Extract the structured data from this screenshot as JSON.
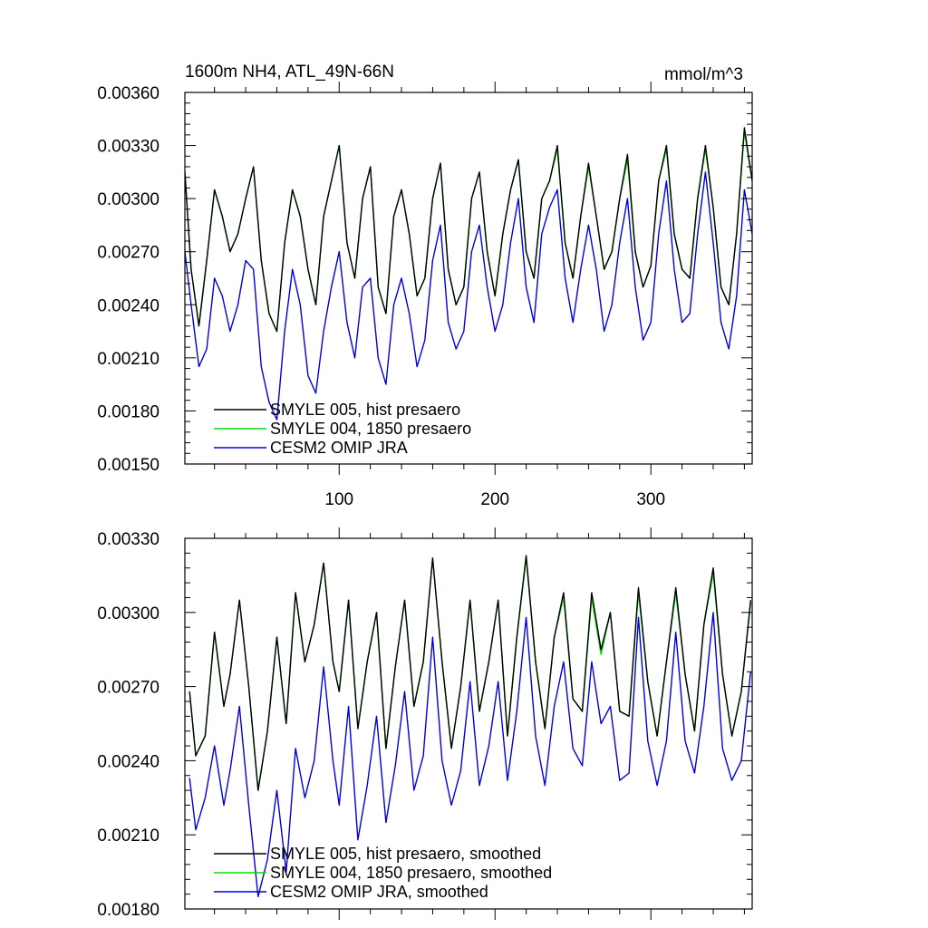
{
  "chart_data": [
    {
      "type": "line",
      "title": "1600m NH4, ATL_49N-66N",
      "units": "mmol/m^3",
      "xlabel": "",
      "ylabel": "",
      "xlim": [
        1,
        365
      ],
      "ylim": [
        0.0015,
        0.0036
      ],
      "x_ticks": [
        {
          "value": 100,
          "label": "100"
        },
        {
          "value": 200,
          "label": "200"
        },
        {
          "value": 300,
          "label": "300"
        }
      ],
      "y_ticks": [
        {
          "value": 0.0015,
          "label": "0.00150"
        },
        {
          "value": 0.0018,
          "label": "0.00180"
        },
        {
          "value": 0.0021,
          "label": "0.00210"
        },
        {
          "value": 0.0024,
          "label": "0.00240"
        },
        {
          "value": 0.0027,
          "label": "0.00270"
        },
        {
          "value": 0.003,
          "label": "0.00300"
        },
        {
          "value": 0.0033,
          "label": "0.00330"
        },
        {
          "value": 0.0036,
          "label": "0.00360"
        }
      ],
      "legend_position": "bottom-left",
      "series": [
        {
          "name": "SMYLE 005, hist presaero",
          "color": "#000000",
          "x": [
            1,
            5,
            10,
            15,
            20,
            25,
            30,
            35,
            40,
            45,
            50,
            55,
            60,
            65,
            70,
            75,
            80,
            85,
            90,
            95,
            100,
            105,
            110,
            115,
            120,
            125,
            130,
            135,
            140,
            145,
            150,
            155,
            160,
            165,
            170,
            175,
            180,
            185,
            190,
            195,
            200,
            205,
            210,
            215,
            220,
            225,
            230,
            235,
            240,
            245,
            250,
            255,
            260,
            265,
            270,
            275,
            280,
            285,
            290,
            295,
            300,
            305,
            310,
            315,
            320,
            325,
            330,
            335,
            340,
            345,
            350,
            355,
            360,
            365
          ],
          "values": [
            0.00315,
            0.0026,
            0.00228,
            0.00265,
            0.00305,
            0.0029,
            0.0027,
            0.0028,
            0.003,
            0.00318,
            0.00265,
            0.00235,
            0.00225,
            0.00275,
            0.00305,
            0.0029,
            0.0026,
            0.0024,
            0.0029,
            0.0031,
            0.0033,
            0.00275,
            0.00255,
            0.003,
            0.00318,
            0.0025,
            0.00235,
            0.0029,
            0.00305,
            0.0028,
            0.00245,
            0.00255,
            0.003,
            0.0032,
            0.0026,
            0.0024,
            0.0025,
            0.003,
            0.00315,
            0.0027,
            0.00245,
            0.0028,
            0.00305,
            0.00322,
            0.0027,
            0.00255,
            0.003,
            0.0031,
            0.0033,
            0.00275,
            0.00255,
            0.0029,
            0.0032,
            0.0029,
            0.0026,
            0.0027,
            0.003,
            0.00325,
            0.0027,
            0.0025,
            0.00262,
            0.0031,
            0.0033,
            0.0028,
            0.0026,
            0.00255,
            0.003,
            0.0033,
            0.00295,
            0.0025,
            0.0024,
            0.0028,
            0.0034,
            0.0031
          ]
        },
        {
          "name": "SMYLE 004, 1850 presaero",
          "color": "#00dd00",
          "x": [
            1,
            5,
            10,
            15,
            20,
            25,
            30,
            35,
            40,
            45,
            50,
            55,
            60,
            65,
            70,
            75,
            80,
            85,
            90,
            95,
            100,
            105,
            110,
            115,
            120,
            125,
            130,
            135,
            140,
            145,
            150,
            155,
            160,
            165,
            170,
            175,
            180,
            185,
            190,
            195,
            200,
            205,
            210,
            215,
            220,
            225,
            230,
            235,
            240,
            245,
            250,
            255,
            260,
            265,
            270,
            275,
            280,
            285,
            290,
            295,
            300,
            305,
            310,
            315,
            320,
            325,
            330,
            335,
            340,
            345,
            350,
            355,
            360,
            365
          ],
          "values": [
            0.00315,
            0.0026,
            0.00228,
            0.00265,
            0.00305,
            0.0029,
            0.0027,
            0.0028,
            0.003,
            0.00318,
            0.00265,
            0.00235,
            0.00225,
            0.00275,
            0.00305,
            0.0029,
            0.0026,
            0.0024,
            0.0029,
            0.0031,
            0.0033,
            0.00275,
            0.00255,
            0.003,
            0.00318,
            0.0025,
            0.00235,
            0.0029,
            0.00305,
            0.0028,
            0.00245,
            0.00255,
            0.003,
            0.0032,
            0.0026,
            0.0024,
            0.0025,
            0.003,
            0.00315,
            0.0027,
            0.00245,
            0.0028,
            0.00305,
            0.00322,
            0.0027,
            0.00255,
            0.003,
            0.0031,
            0.00328,
            0.00275,
            0.00255,
            0.0029,
            0.00318,
            0.0029,
            0.0026,
            0.0027,
            0.003,
            0.00322,
            0.0027,
            0.0025,
            0.00262,
            0.0031,
            0.00328,
            0.0028,
            0.0026,
            0.00255,
            0.003,
            0.00328,
            0.00295,
            0.0025,
            0.0024,
            0.0028,
            0.00338,
            0.0031
          ]
        },
        {
          "name": "CESM2 OMIP JRA",
          "color": "#0000dd",
          "x": [
            1,
            5,
            10,
            15,
            20,
            25,
            30,
            35,
            40,
            45,
            50,
            55,
            60,
            65,
            70,
            75,
            80,
            85,
            90,
            95,
            100,
            105,
            110,
            115,
            120,
            125,
            130,
            135,
            140,
            145,
            150,
            155,
            160,
            165,
            170,
            175,
            180,
            185,
            190,
            195,
            200,
            205,
            210,
            215,
            220,
            225,
            230,
            235,
            240,
            245,
            250,
            255,
            260,
            265,
            270,
            275,
            280,
            285,
            290,
            295,
            300,
            305,
            310,
            315,
            320,
            325,
            330,
            335,
            340,
            345,
            350,
            355,
            360,
            365
          ],
          "values": [
            0.0027,
            0.0024,
            0.00205,
            0.00215,
            0.00255,
            0.00245,
            0.00225,
            0.0024,
            0.00265,
            0.0026,
            0.00205,
            0.00185,
            0.00175,
            0.00225,
            0.0026,
            0.0024,
            0.002,
            0.0019,
            0.00225,
            0.0025,
            0.0027,
            0.0023,
            0.0021,
            0.0025,
            0.00255,
            0.0021,
            0.00195,
            0.0024,
            0.00255,
            0.00235,
            0.00205,
            0.0022,
            0.00265,
            0.00285,
            0.0023,
            0.00215,
            0.00225,
            0.0027,
            0.00285,
            0.0025,
            0.00225,
            0.0024,
            0.00275,
            0.003,
            0.0025,
            0.0023,
            0.0028,
            0.00295,
            0.00305,
            0.00255,
            0.0023,
            0.0026,
            0.00285,
            0.0026,
            0.00225,
            0.0024,
            0.00275,
            0.003,
            0.0025,
            0.0022,
            0.0023,
            0.0028,
            0.0031,
            0.0026,
            0.0023,
            0.00235,
            0.0028,
            0.00315,
            0.00275,
            0.0023,
            0.00215,
            0.00245,
            0.00305,
            0.0028
          ]
        }
      ]
    },
    {
      "type": "line",
      "title": "",
      "xlabel": "",
      "ylabel": "",
      "xlim": [
        1,
        365
      ],
      "ylim": [
        0.0018,
        0.0033
      ],
      "y_ticks": [
        {
          "value": 0.0018,
          "label": "0.00180"
        },
        {
          "value": 0.0021,
          "label": "0.00210"
        },
        {
          "value": 0.0024,
          "label": "0.00240"
        },
        {
          "value": 0.0027,
          "label": "0.00270"
        },
        {
          "value": 0.003,
          "label": "0.00300"
        },
        {
          "value": 0.0033,
          "label": "0.00330"
        }
      ],
      "legend_position": "bottom-left",
      "series": [
        {
          "name": "SMYLE 005, hist presaero, smoothed",
          "color": "#000000",
          "x": [
            4,
            8,
            14,
            20,
            26,
            30,
            36,
            42,
            48,
            54,
            60,
            66,
            72,
            78,
            84,
            90,
            96,
            100,
            106,
            112,
            118,
            124,
            130,
            136,
            142,
            148,
            154,
            160,
            166,
            172,
            178,
            184,
            190,
            196,
            202,
            208,
            214,
            220,
            226,
            232,
            238,
            244,
            250,
            256,
            262,
            268,
            274,
            280,
            286,
            292,
            298,
            304,
            310,
            316,
            322,
            328,
            334,
            340,
            346,
            352,
            358,
            364
          ],
          "values": [
            0.00268,
            0.00242,
            0.0025,
            0.00292,
            0.00262,
            0.00275,
            0.00305,
            0.0027,
            0.00228,
            0.00252,
            0.0029,
            0.00255,
            0.00308,
            0.0028,
            0.00295,
            0.0032,
            0.0028,
            0.00268,
            0.00305,
            0.00253,
            0.0028,
            0.003,
            0.00245,
            0.00278,
            0.00305,
            0.00262,
            0.0028,
            0.00322,
            0.0028,
            0.00245,
            0.0027,
            0.00305,
            0.0026,
            0.0028,
            0.00305,
            0.0025,
            0.0029,
            0.00323,
            0.0028,
            0.00253,
            0.0029,
            0.00308,
            0.00265,
            0.0026,
            0.00308,
            0.00285,
            0.003,
            0.0026,
            0.00258,
            0.0031,
            0.00272,
            0.0025,
            0.0028,
            0.0031,
            0.00275,
            0.00252,
            0.00295,
            0.00318,
            0.00275,
            0.0025,
            0.00268,
            0.00305
          ]
        },
        {
          "name": "SMYLE 004, 1850 presaero, smoothed",
          "color": "#00dd00",
          "x": [
            4,
            8,
            14,
            20,
            26,
            30,
            36,
            42,
            48,
            54,
            60,
            66,
            72,
            78,
            84,
            90,
            96,
            100,
            106,
            112,
            118,
            124,
            130,
            136,
            142,
            148,
            154,
            160,
            166,
            172,
            178,
            184,
            190,
            196,
            202,
            208,
            214,
            220,
            226,
            232,
            238,
            244,
            250,
            256,
            262,
            268,
            274,
            280,
            286,
            292,
            298,
            304,
            310,
            316,
            322,
            328,
            334,
            340,
            346,
            352,
            358,
            364
          ],
          "values": [
            0.00268,
            0.00242,
            0.0025,
            0.00292,
            0.00262,
            0.00275,
            0.00305,
            0.0027,
            0.00228,
            0.00252,
            0.0029,
            0.00255,
            0.00308,
            0.0028,
            0.00295,
            0.0032,
            0.0028,
            0.00268,
            0.00305,
            0.00253,
            0.0028,
            0.003,
            0.00245,
            0.00278,
            0.00305,
            0.00262,
            0.0028,
            0.00322,
            0.0028,
            0.00245,
            0.0027,
            0.00305,
            0.0026,
            0.0028,
            0.00305,
            0.0025,
            0.0029,
            0.00322,
            0.0028,
            0.00253,
            0.0029,
            0.00306,
            0.00265,
            0.0026,
            0.00306,
            0.00283,
            0.003,
            0.0026,
            0.00258,
            0.00308,
            0.00272,
            0.0025,
            0.0028,
            0.00308,
            0.00275,
            0.00252,
            0.00295,
            0.00316,
            0.00275,
            0.0025,
            0.00268,
            0.00304
          ]
        },
        {
          "name": "CESM2 OMIP JRA, smoothed",
          "color": "#0000dd",
          "x": [
            4,
            8,
            14,
            20,
            26,
            30,
            36,
            42,
            48,
            54,
            60,
            66,
            72,
            78,
            84,
            90,
            96,
            100,
            106,
            112,
            118,
            124,
            130,
            136,
            142,
            148,
            154,
            160,
            166,
            172,
            178,
            184,
            190,
            196,
            202,
            208,
            214,
            220,
            226,
            232,
            238,
            244,
            250,
            256,
            262,
            268,
            274,
            280,
            286,
            292,
            298,
            304,
            310,
            316,
            322,
            328,
            334,
            340,
            346,
            352,
            358,
            364
          ],
          "values": [
            0.00233,
            0.00212,
            0.00225,
            0.00246,
            0.00222,
            0.00236,
            0.00262,
            0.00222,
            0.00185,
            0.002,
            0.00228,
            0.00195,
            0.00245,
            0.00225,
            0.0024,
            0.00278,
            0.0024,
            0.00222,
            0.00262,
            0.00208,
            0.0023,
            0.00258,
            0.00215,
            0.00238,
            0.00268,
            0.00228,
            0.00242,
            0.0029,
            0.0024,
            0.00222,
            0.00236,
            0.00272,
            0.0023,
            0.00246,
            0.00272,
            0.00232,
            0.0026,
            0.00298,
            0.0025,
            0.0023,
            0.00262,
            0.0028,
            0.00245,
            0.00238,
            0.0028,
            0.00255,
            0.00262,
            0.00232,
            0.00235,
            0.00298,
            0.00248,
            0.0023,
            0.00248,
            0.00292,
            0.00248,
            0.00235,
            0.00262,
            0.003,
            0.00245,
            0.00232,
            0.0024,
            0.00276
          ]
        }
      ]
    }
  ]
}
